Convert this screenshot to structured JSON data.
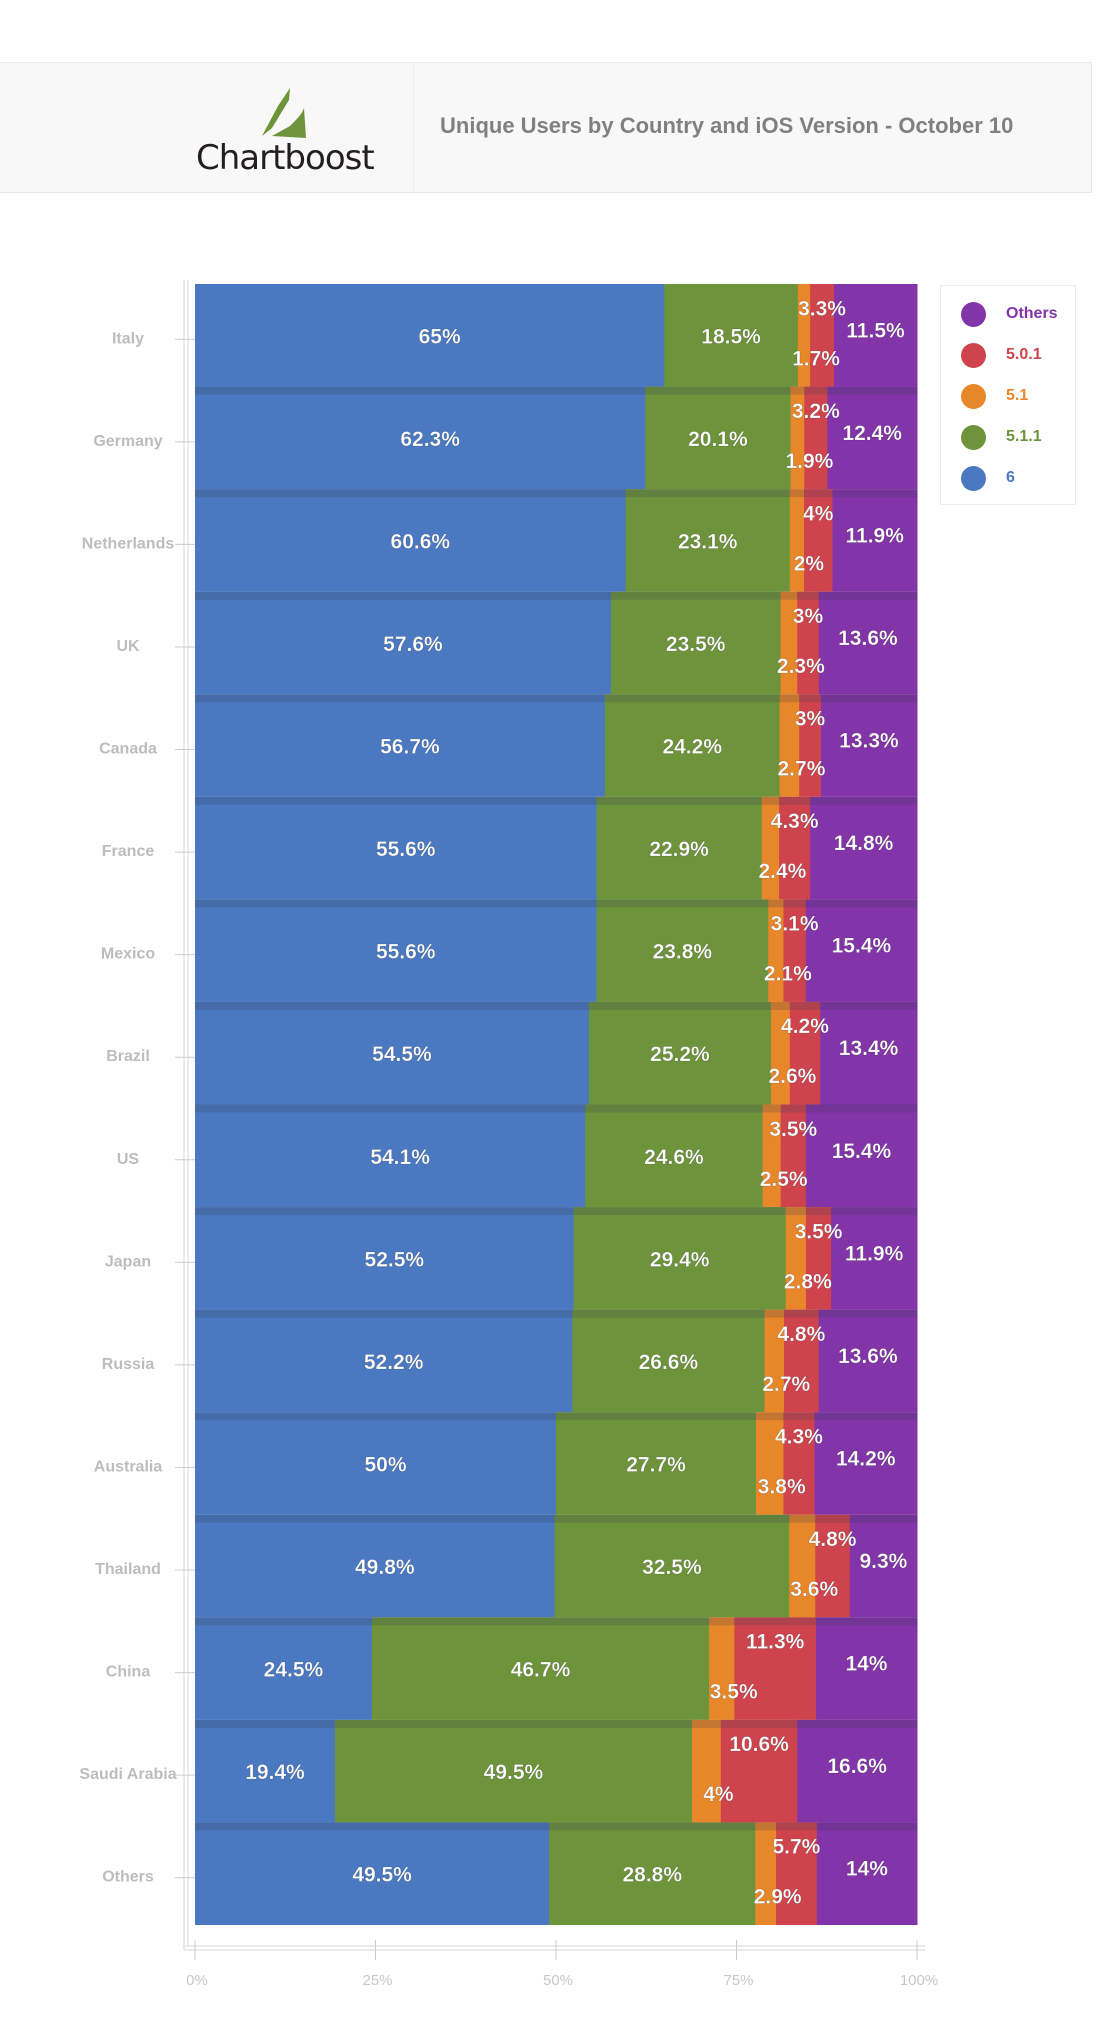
{
  "header": {
    "logo_text": "Chartboost",
    "title": "Unique Users by Country and iOS Version - October 10"
  },
  "colors": {
    "6": "#4a79c2",
    "5.1.1": "#6d943a",
    "5.1": "#e8872a",
    "5.0.1": "#cf444c",
    "Others": "#8234a8",
    "logo_green": "#6d943a"
  },
  "legend": [
    {
      "label": "Others",
      "color": "#8234a8"
    },
    {
      "label": "5.0.1",
      "color": "#cf444c"
    },
    {
      "label": "5.1",
      "color": "#e8872a"
    },
    {
      "label": "5.1.1",
      "color": "#6d943a"
    },
    {
      "label": "6",
      "color": "#4a79c2"
    }
  ],
  "chart_data": {
    "type": "bar",
    "orientation": "horizontal",
    "stacked": "percent",
    "title": "Unique Users by Country and iOS Version - October 10",
    "xlabel": "",
    "ylabel": "",
    "xlim": [
      0,
      100
    ],
    "x_ticks": [
      "0%",
      "25%",
      "50%",
      "75%",
      "100%"
    ],
    "legend_position": "top-right",
    "categories": [
      "Italy",
      "Germany",
      "Netherlands",
      "UK",
      "Canada",
      "France",
      "Mexico",
      "Brazil",
      "US",
      "Japan",
      "Russia",
      "Australia",
      "Thailand",
      "China",
      "Saudi Arabia",
      "Others"
    ],
    "series": [
      {
        "name": "6",
        "values": [
          65,
          62.3,
          60.6,
          57.6,
          56.7,
          55.6,
          55.6,
          54.5,
          54.1,
          52.5,
          52.2,
          50,
          49.8,
          24.5,
          19.4,
          49.5
        ]
      },
      {
        "name": "5.1.1",
        "values": [
          18.5,
          20.1,
          23.1,
          23.5,
          24.2,
          22.9,
          23.8,
          25.2,
          24.6,
          29.4,
          26.6,
          27.7,
          32.5,
          46.7,
          49.5,
          28.8
        ]
      },
      {
        "name": "5.1",
        "values": [
          1.7,
          1.9,
          2,
          2.3,
          2.7,
          2.4,
          2.1,
          2.6,
          2.5,
          2.8,
          2.7,
          3.8,
          3.6,
          3.5,
          4,
          2.9
        ]
      },
      {
        "name": "5.0.1",
        "values": [
          3.3,
          3.2,
          4,
          3,
          3,
          4.3,
          3.1,
          4.2,
          3.5,
          3.5,
          4.8,
          4.3,
          4.8,
          11.3,
          10.6,
          5.7
        ]
      },
      {
        "name": "Others",
        "values": [
          11.5,
          12.4,
          11.9,
          13.6,
          13.3,
          14.8,
          15.4,
          13.4,
          15.4,
          11.9,
          13.6,
          14.2,
          9.3,
          14,
          16.6,
          14
        ]
      }
    ]
  }
}
